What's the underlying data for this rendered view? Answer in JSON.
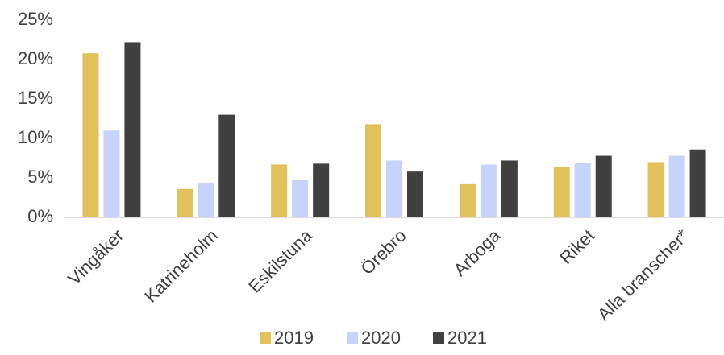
{
  "chart_data": {
    "type": "bar",
    "categories": [
      "Vingåker",
      "Katrineholm",
      "Eskilstuna",
      "Örebro",
      "Arboga",
      "Riket",
      "Alla branscher*"
    ],
    "series": [
      {
        "name": "2019",
        "color": "#e1c25a",
        "values": [
          20.8,
          3.6,
          6.7,
          11.8,
          4.3,
          6.4,
          7.0
        ]
      },
      {
        "name": "2020",
        "color": "#c6d4fb",
        "values": [
          11.0,
          4.4,
          4.8,
          7.2,
          6.7,
          6.9,
          7.8
        ]
      },
      {
        "name": "2021",
        "color": "#404040",
        "values": [
          22.2,
          13.0,
          6.8,
          5.8,
          7.2,
          7.8,
          8.6
        ]
      }
    ],
    "ylim": [
      0,
      25
    ],
    "yticks": [
      {
        "value": 0,
        "label": "0%"
      },
      {
        "value": 5,
        "label": "5%"
      },
      {
        "value": 10,
        "label": "10%"
      },
      {
        "value": 15,
        "label": "15%"
      },
      {
        "value": 20,
        "label": "20%"
      },
      {
        "value": 25,
        "label": "25%"
      }
    ],
    "grid": false,
    "legend": "bottom"
  }
}
